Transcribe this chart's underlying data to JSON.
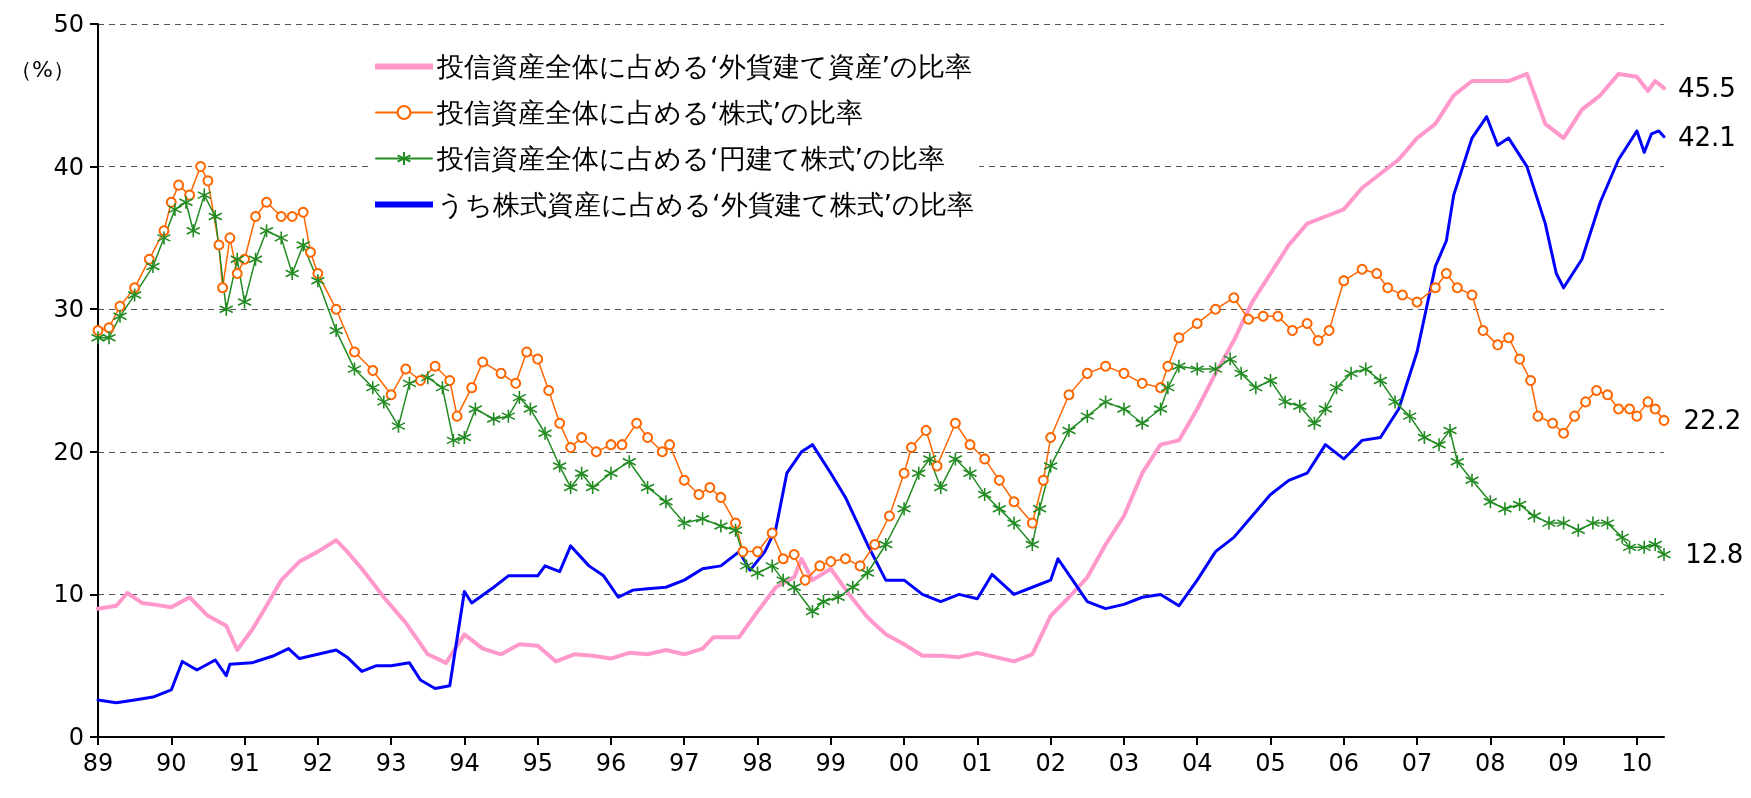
{
  "chart_data": {
    "type": "line",
    "ylabel": "（%）",
    "xlim": [
      1989,
      2010.37
    ],
    "ylim": [
      0,
      50
    ],
    "xticks": [
      {
        "value": 1989,
        "label": "89"
      },
      {
        "value": 1990,
        "label": "90"
      },
      {
        "value": 1991,
        "label": "91"
      },
      {
        "value": 1992,
        "label": "92"
      },
      {
        "value": 1993,
        "label": "93"
      },
      {
        "value": 1994,
        "label": "94"
      },
      {
        "value": 1995,
        "label": "95"
      },
      {
        "value": 1996,
        "label": "96"
      },
      {
        "value": 1997,
        "label": "97"
      },
      {
        "value": 1998,
        "label": "98"
      },
      {
        "value": 1999,
        "label": "99"
      },
      {
        "value": 2000,
        "label": "00"
      },
      {
        "value": 2001,
        "label": "01"
      },
      {
        "value": 2002,
        "label": "02"
      },
      {
        "value": 2003,
        "label": "03"
      },
      {
        "value": 2004,
        "label": "04"
      },
      {
        "value": 2005,
        "label": "05"
      },
      {
        "value": 2006,
        "label": "06"
      },
      {
        "value": 2007,
        "label": "07"
      },
      {
        "value": 2008,
        "label": "08"
      },
      {
        "value": 2009,
        "label": "09"
      },
      {
        "value": 2010,
        "label": "10"
      }
    ],
    "yticks": [
      0,
      10,
      20,
      30,
      40,
      50
    ],
    "grid": "y",
    "legend": "top",
    "line_style": "solid",
    "series": [
      {
        "name": "投信資産全体に占める‘外貨建て資産’の比率",
        "color": "#ff99cc",
        "marker": "none",
        "value_labels": [
          null,
          null,
          null,
          null,
          null,
          null,
          null,
          null,
          null,
          null,
          null,
          null,
          null,
          null,
          null,
          null,
          null,
          null,
          null,
          null,
          null,
          null,
          null,
          null,
          null,
          null,
          null,
          null,
          null,
          null,
          null,
          null,
          null,
          null,
          null,
          null,
          null,
          null,
          null,
          null,
          null,
          null,
          null,
          null,
          null,
          null,
          null,
          null,
          null,
          null,
          null,
          null,
          null,
          null,
          null,
          null,
          null,
          null,
          null,
          null,
          null,
          null,
          null,
          null,
          null,
          null,
          null,
          null,
          null,
          null,
          null,
          null,
          null,
          null,
          null,
          null,
          null,
          null,
          null,
          null,
          null,
          null,
          null,
          null,
          null,
          null,
          null,
          null,
          null,
          null,
          "45.5"
        ],
        "x": [
          1989,
          1989.25,
          1989.4,
          1989.6,
          1989.75,
          1990,
          1990.25,
          1990.5,
          1990.75,
          1990.9,
          1991.1,
          1991.3,
          1991.5,
          1991.75,
          1992,
          1992.25,
          1992.4,
          1992.6,
          1992.9,
          1993.2,
          1993.5,
          1993.75,
          1994,
          1994.25,
          1994.5,
          1994.75,
          1995,
          1995.25,
          1995.5,
          1995.75,
          1996,
          1996.25,
          1996.5,
          1996.75,
          1997,
          1997.25,
          1997.4,
          1997.75,
          1998,
          1998.25,
          1998.5,
          1998.6,
          1998.75,
          1999,
          1999.25,
          1999.5,
          1999.75,
          2000,
          2000.25,
          2000.5,
          2000.75,
          2001,
          2001.25,
          2001.5,
          2001.75,
          2002,
          2002.25,
          2002.5,
          2002.75,
          2003,
          2003.25,
          2003.5,
          2003.75,
          2004,
          2004.25,
          2004.5,
          2004.75,
          2005,
          2005.25,
          2005.5,
          2005.75,
          2006,
          2006.25,
          2006.5,
          2006.75,
          2007,
          2007.25,
          2007.5,
          2007.75,
          2008,
          2008.25,
          2008.5,
          2008.75,
          2009,
          2009.25,
          2009.5,
          2009.75,
          2010,
          2010.15,
          2010.25,
          2010.37
        ],
        "values": [
          9.0,
          9.2,
          10.1,
          9.4,
          9.3,
          9.1,
          9.8,
          8.5,
          7.8,
          6.1,
          7.5,
          9.2,
          11.0,
          12.3,
          13.0,
          13.8,
          13.0,
          11.8,
          9.8,
          8.0,
          5.8,
          5.2,
          7.2,
          6.2,
          5.8,
          6.5,
          6.4,
          5.3,
          5.8,
          5.7,
          5.5,
          5.9,
          5.8,
          6.1,
          5.8,
          6.2,
          7.0,
          7.0,
          8.8,
          10.5,
          11.2,
          12.5,
          11.0,
          11.8,
          10.0,
          8.4,
          7.2,
          6.5,
          5.7,
          5.7,
          5.6,
          5.9,
          5.6,
          5.3,
          5.8,
          8.5,
          9.8,
          11.2,
          13.5,
          15.5,
          18.5,
          20.5,
          20.8,
          23.0,
          25.5,
          27.8,
          30.5,
          32.5,
          34.5,
          36.0,
          36.5,
          37.0,
          38.5,
          39.5,
          40.5,
          42.0,
          43.0,
          45.0,
          46.0,
          46.0,
          46.0,
          46.5,
          43.0,
          42.0,
          44.0,
          45.0,
          46.5,
          46.3,
          45.3,
          46.0,
          45.5
        ]
      },
      {
        "name": "投信資産全体に占める‘株式’の比率",
        "color": "#ff6600",
        "marker": "circle",
        "value_labels": [
          null,
          null,
          null,
          null,
          null,
          null,
          null,
          null,
          null,
          null,
          null,
          null,
          null,
          null,
          null,
          null,
          null,
          null,
          null,
          null,
          null,
          null,
          null,
          null,
          null,
          null,
          null,
          null,
          null,
          null,
          null,
          null,
          null,
          null,
          null,
          null,
          null,
          null,
          null,
          null,
          null,
          null,
          null,
          null,
          null,
          null,
          null,
          null,
          null,
          null,
          null,
          null,
          null,
          null,
          null,
          null,
          null,
          null,
          null,
          null,
          null,
          null,
          null,
          null,
          null,
          null,
          null,
          null,
          null,
          null,
          null,
          null,
          null,
          null,
          null,
          null,
          null,
          null,
          null,
          null,
          null,
          null,
          null,
          null,
          null,
          null,
          null,
          null,
          null,
          null,
          null,
          null,
          null,
          null,
          null,
          null,
          null,
          null,
          null,
          null,
          null,
          null,
          null,
          null,
          null,
          null,
          null,
          null,
          null,
          null,
          null,
          null,
          null,
          null,
          null,
          null,
          null,
          null,
          null,
          null,
          null,
          null,
          null,
          "22.2"
        ],
        "x": [
          1989,
          1989.15,
          1989.3,
          1989.5,
          1989.7,
          1989.9,
          1990,
          1990.1,
          1990.25,
          1990.4,
          1990.5,
          1990.65,
          1990.7,
          1990.8,
          1990.9,
          1991,
          1991.15,
          1991.3,
          1991.5,
          1991.65,
          1991.8,
          1991.9,
          1992,
          1992.25,
          1992.5,
          1992.75,
          1993,
          1993.2,
          1993.4,
          1993.6,
          1993.8,
          1993.9,
          1994.1,
          1994.25,
          1994.5,
          1994.7,
          1994.85,
          1995,
          1995.15,
          1995.3,
          1995.45,
          1995.6,
          1995.8,
          1996,
          1996.15,
          1996.35,
          1996.5,
          1996.7,
          1996.8,
          1997,
          1997.2,
          1997.35,
          1997.5,
          1997.7,
          1997.8,
          1998,
          1998.2,
          1998.35,
          1998.5,
          1998.65,
          1998.85,
          1999,
          1999.2,
          1999.4,
          1999.6,
          1999.8,
          2000,
          2000.1,
          2000.3,
          2000.45,
          2000.7,
          2000.9,
          2001.1,
          2001.3,
          2001.5,
          2001.75,
          2001.9,
          2002,
          2002.25,
          2002.5,
          2002.75,
          2003,
          2003.25,
          2003.5,
          2003.6,
          2003.75,
          2004,
          2004.25,
          2004.5,
          2004.7,
          2004.9,
          2005.1,
          2005.3,
          2005.5,
          2005.65,
          2005.8,
          2006,
          2006.25,
          2006.45,
          2006.6,
          2006.8,
          2007,
          2007.25,
          2007.4,
          2007.55,
          2007.75,
          2007.9,
          2008.1,
          2008.25,
          2008.4,
          2008.55,
          2008.65,
          2008.85,
          2009,
          2009.15,
          2009.3,
          2009.45,
          2009.6,
          2009.75,
          2009.9,
          2010,
          2010.15,
          2010.25,
          2010.37
        ],
        "values": [
          28.5,
          28.7,
          30.2,
          31.5,
          33.5,
          35.5,
          37.5,
          38.7,
          38.0,
          40.0,
          39.0,
          34.5,
          31.5,
          35.0,
          32.5,
          33.5,
          36.5,
          37.5,
          36.5,
          36.5,
          36.8,
          34.0,
          32.5,
          30.0,
          27.0,
          25.7,
          24.0,
          25.8,
          25.0,
          26.0,
          25.0,
          22.5,
          24.5,
          26.3,
          25.5,
          24.8,
          27.0,
          26.5,
          24.3,
          22.0,
          20.3,
          21.0,
          20.0,
          20.5,
          20.5,
          22.0,
          21.0,
          20.0,
          20.5,
          18.0,
          17.0,
          17.5,
          16.8,
          15.0,
          13.0,
          13.0,
          14.3,
          12.5,
          12.8,
          11.0,
          12.0,
          12.3,
          12.5,
          12.0,
          13.5,
          15.5,
          18.5,
          20.3,
          21.5,
          19.0,
          22.0,
          20.5,
          19.5,
          18.0,
          16.5,
          15.0,
          18.0,
          21.0,
          24.0,
          25.5,
          26.0,
          25.5,
          24.8,
          24.5,
          26.0,
          28.0,
          29.0,
          30.0,
          30.8,
          29.3,
          29.5,
          29.5,
          28.5,
          29.0,
          27.8,
          28.5,
          32.0,
          32.8,
          32.5,
          31.5,
          31.0,
          30.5,
          31.5,
          32.5,
          31.5,
          31.0,
          28.5,
          27.5,
          28.0,
          26.5,
          25.0,
          22.5,
          22.0,
          21.3,
          22.5,
          23.5,
          24.3,
          24.0,
          23.0,
          23.0,
          22.5,
          23.5,
          23.0,
          22.2
        ]
      },
      {
        "name": "投信資産全体に占める‘円建て株式’の比率",
        "color": "#228b22",
        "marker": "cross",
        "value_labels": [
          null,
          null,
          null,
          null,
          null,
          null,
          null,
          null,
          null,
          null,
          null,
          null,
          null,
          null,
          null,
          null,
          null,
          null,
          null,
          null,
          null,
          null,
          null,
          null,
          null,
          null,
          null,
          null,
          null,
          null,
          null,
          null,
          null,
          null,
          null,
          null,
          null,
          null,
          null,
          null,
          null,
          null,
          null,
          null,
          null,
          null,
          null,
          null,
          null,
          null,
          null,
          null,
          null,
          null,
          null,
          null,
          null,
          null,
          null,
          null,
          null,
          null,
          null,
          null,
          null,
          null,
          null,
          null,
          null,
          null,
          null,
          null,
          null,
          null,
          null,
          null,
          null,
          null,
          null,
          null,
          null,
          null,
          null,
          null,
          null,
          null,
          null,
          null,
          null,
          null,
          null,
          null,
          null,
          null,
          null,
          null,
          null,
          null,
          null,
          null,
          null,
          null,
          null,
          null,
          null,
          null,
          null,
          null,
          null,
          null,
          null,
          null,
          null,
          "12.8"
        ],
        "x": [
          1989,
          1989.15,
          1989.3,
          1989.5,
          1989.75,
          1989.9,
          1990.05,
          1990.2,
          1990.3,
          1990.45,
          1990.6,
          1990.75,
          1990.9,
          1991,
          1991.15,
          1991.3,
          1991.5,
          1991.65,
          1991.8,
          1992,
          1992.25,
          1992.5,
          1992.75,
          1992.9,
          1993.1,
          1993.25,
          1993.5,
          1993.7,
          1993.85,
          1994,
          1994.15,
          1994.4,
          1994.6,
          1994.75,
          1994.9,
          1995.1,
          1995.3,
          1995.45,
          1995.6,
          1995.75,
          1996,
          1996.25,
          1996.5,
          1996.75,
          1997,
          1997.25,
          1997.5,
          1997.7,
          1997.85,
          1998,
          1998.2,
          1998.35,
          1998.5,
          1998.75,
          1998.9,
          1999.1,
          1999.3,
          1999.5,
          1999.75,
          2000,
          2000.2,
          2000.35,
          2000.5,
          2000.7,
          2000.9,
          2001.1,
          2001.3,
          2001.5,
          2001.75,
          2001.85,
          2002,
          2002.25,
          2002.5,
          2002.75,
          2003,
          2003.25,
          2003.5,
          2003.6,
          2003.75,
          2004,
          2004.25,
          2004.45,
          2004.6,
          2004.8,
          2005,
          2005.2,
          2005.4,
          2005.6,
          2005.75,
          2005.9,
          2006.1,
          2006.3,
          2006.5,
          2006.7,
          2006.9,
          2007.1,
          2007.3,
          2007.45,
          2007.55,
          2007.75,
          2008,
          2008.2,
          2008.4,
          2008.6,
          2008.8,
          2009,
          2009.2,
          2009.4,
          2009.6,
          2009.8,
          2009.9,
          2010.1,
          2010.25,
          2010.37
        ],
        "values": [
          28.0,
          28.0,
          29.5,
          31.0,
          33.0,
          35.0,
          37.0,
          37.5,
          35.5,
          38.0,
          36.5,
          30.0,
          33.5,
          30.5,
          33.5,
          35.5,
          35.0,
          32.5,
          34.5,
          32.0,
          28.5,
          25.8,
          24.5,
          23.5,
          21.8,
          24.8,
          25.2,
          24.5,
          20.8,
          21.0,
          23.0,
          22.3,
          22.5,
          23.8,
          23.0,
          21.3,
          19.0,
          17.5,
          18.5,
          17.5,
          18.5,
          19.3,
          17.5,
          16.5,
          15.0,
          15.3,
          14.8,
          14.5,
          12.0,
          11.5,
          12.0,
          11.0,
          10.5,
          8.8,
          9.5,
          9.8,
          10.5,
          11.5,
          13.5,
          16.0,
          18.5,
          19.5,
          17.5,
          19.5,
          18.5,
          17.0,
          16.0,
          15.0,
          13.5,
          16.0,
          19.0,
          21.5,
          22.5,
          23.5,
          23.0,
          22.0,
          23.0,
          24.5,
          26.0,
          25.8,
          25.8,
          26.5,
          25.5,
          24.5,
          25.0,
          23.5,
          23.2,
          22.0,
          23.0,
          24.5,
          25.5,
          25.8,
          25.0,
          23.5,
          22.5,
          21.0,
          20.5,
          21.5,
          19.3,
          18.0,
          16.5,
          16.0,
          16.3,
          15.5,
          15.0,
          15.0,
          14.5,
          15.0,
          15.0,
          14.0,
          13.3,
          13.3,
          13.5,
          12.8
        ]
      },
      {
        "name": "うち株式資産に占める‘外貨建て株式’の比率",
        "color": "#0000ff",
        "marker": "none",
        "value_labels": [
          null,
          null,
          null,
          null,
          null,
          null,
          null,
          null,
          null,
          null,
          null,
          null,
          null,
          null,
          null,
          null,
          null,
          null,
          null,
          null,
          null,
          null,
          null,
          null,
          null,
          null,
          null,
          null,
          null,
          null,
          null,
          null,
          null,
          null,
          null,
          null,
          null,
          null,
          null,
          null,
          null,
          null,
          null,
          null,
          null,
          null,
          null,
          null,
          null,
          null,
          null,
          null,
          null,
          null,
          null,
          null,
          null,
          null,
          null,
          null,
          null,
          null,
          null,
          null,
          null,
          null,
          null,
          null,
          null,
          null,
          null,
          null,
          null,
          null,
          null,
          null,
          null,
          null,
          null,
          null,
          null,
          null,
          null,
          null,
          null,
          null,
          null,
          null,
          null,
          null,
          null,
          null,
          null,
          null,
          null,
          null,
          null,
          null,
          null,
          null,
          "42.1"
        ],
        "x": [
          1989,
          1989.25,
          1989.5,
          1989.75,
          1990,
          1990.15,
          1990.35,
          1990.6,
          1990.75,
          1990.8,
          1991.1,
          1991.4,
          1991.6,
          1991.75,
          1992,
          1992.25,
          1992.4,
          1992.6,
          1992.8,
          1993,
          1993.25,
          1993.4,
          1993.6,
          1993.8,
          1994,
          1994.1,
          1994.4,
          1994.6,
          1995,
          1995.1,
          1995.3,
          1995.45,
          1995.7,
          1995.9,
          1996.1,
          1996.3,
          1996.5,
          1996.75,
          1997,
          1997.25,
          1997.5,
          1997.75,
          1997.9,
          1998.1,
          1998.25,
          1998.4,
          1998.6,
          1998.75,
          1999,
          1999.2,
          1999.5,
          1999.75,
          2000,
          2000.25,
          2000.5,
          2000.75,
          2001,
          2001.2,
          2001.5,
          2001.75,
          2002,
          2002.1,
          2002.3,
          2002.5,
          2002.75,
          2003,
          2003.25,
          2003.5,
          2003.75,
          2004,
          2004.25,
          2004.5,
          2004.75,
          2005,
          2005.25,
          2005.5,
          2005.75,
          2006,
          2006.25,
          2006.5,
          2006.75,
          2007,
          2007.25,
          2007.4,
          2007.5,
          2007.75,
          2007.95,
          2008.1,
          2008.25,
          2008.5,
          2008.75,
          2008.9,
          2009,
          2009.25,
          2009.5,
          2009.75,
          2010,
          2010.1,
          2010.2,
          2010.3,
          2010.37
        ],
        "values": [
          2.6,
          2.4,
          2.6,
          2.8,
          3.3,
          5.3,
          4.7,
          5.4,
          4.3,
          5.1,
          5.2,
          5.7,
          6.2,
          5.5,
          5.8,
          6.1,
          5.6,
          4.6,
          5.0,
          5.0,
          5.2,
          4.0,
          3.4,
          3.6,
          10.2,
          9.4,
          10.5,
          11.3,
          11.3,
          12.0,
          11.6,
          13.4,
          12.0,
          11.3,
          9.8,
          10.3,
          10.4,
          10.5,
          11.0,
          11.8,
          12.0,
          13.0,
          11.7,
          13.0,
          14.6,
          18.5,
          20.0,
          20.5,
          18.5,
          16.8,
          13.5,
          11.0,
          11.0,
          10.0,
          9.5,
          10.0,
          9.7,
          11.4,
          10.0,
          10.5,
          11.0,
          12.5,
          11.0,
          9.5,
          9.0,
          9.3,
          9.8,
          10.0,
          9.2,
          11.0,
          13.0,
          14.0,
          15.5,
          17.0,
          18.0,
          18.5,
          20.5,
          19.5,
          20.8,
          21.0,
          23.0,
          27.0,
          33.0,
          34.8,
          38.0,
          42.0,
          43.5,
          41.5,
          42.0,
          40.0,
          36.0,
          32.5,
          31.5,
          33.5,
          37.5,
          40.5,
          42.5,
          41.0,
          42.3,
          42.5,
          42.1
        ]
      }
    ]
  }
}
